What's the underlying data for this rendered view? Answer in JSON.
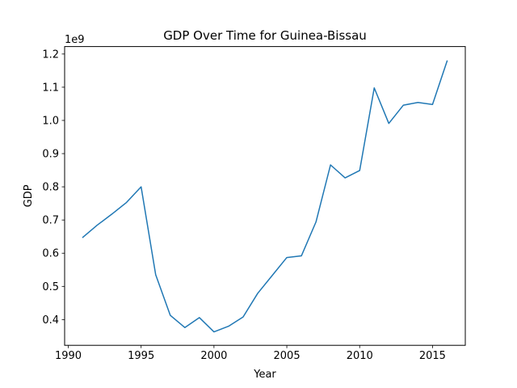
{
  "chart_data": {
    "type": "line",
    "title": "GDP Over Time for Guinea-Bissau",
    "xlabel": "Year",
    "ylabel": "GDP",
    "y_offset_label": "1e9",
    "xlim": [
      1989.75,
      2017.25
    ],
    "ylim": [
      0.3225,
      1.2225
    ],
    "x_ticks": [
      1990,
      1995,
      2000,
      2005,
      2010,
      2015
    ],
    "x_tick_labels": [
      "1990",
      "1995",
      "2000",
      "2005",
      "2010",
      "2015"
    ],
    "y_ticks": [
      0.4,
      0.5,
      0.6,
      0.7,
      0.8,
      0.9,
      1.0,
      1.1,
      1.2
    ],
    "y_tick_labels": [
      "0.4",
      "0.5",
      "0.6",
      "0.7",
      "0.8",
      "0.9",
      "1.0",
      "1.1",
      "1.2"
    ],
    "grid": false,
    "series": [
      {
        "color": "#1f77b4",
        "x": [
          1991,
          1992,
          1993,
          1994,
          1995,
          1996,
          1997,
          1998,
          1999,
          2000,
          2001,
          2002,
          2003,
          2004,
          2005,
          2006,
          2007,
          2008,
          2009,
          2010,
          2011,
          2012,
          2013,
          2014,
          2015,
          2016
        ],
        "y": [
          0.648,
          0.685,
          0.718,
          0.753,
          0.8,
          0.535,
          0.413,
          0.376,
          0.406,
          0.363,
          0.38,
          0.408,
          0.479,
          0.533,
          0.587,
          0.592,
          0.694,
          0.866,
          0.827,
          0.849,
          1.098,
          0.991,
          1.046,
          1.054,
          1.048,
          1.179
        ]
      }
    ]
  }
}
